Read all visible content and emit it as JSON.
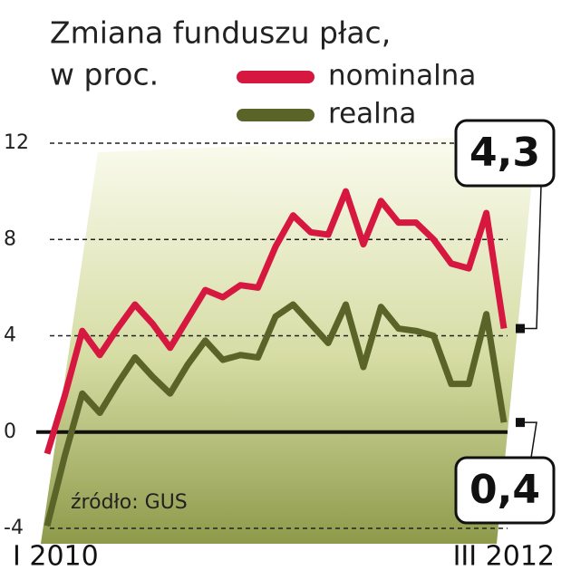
{
  "chart_data": {
    "type": "line",
    "title": [
      "Zmiana funduszu płac,",
      "w proc."
    ],
    "source": "źródło: GUS",
    "categories": [
      "I 2010",
      null,
      null,
      null,
      null,
      null,
      null,
      null,
      null,
      null,
      null,
      null,
      null,
      null,
      null,
      null,
      null,
      null,
      null,
      null,
      null,
      null,
      null,
      null,
      null,
      null,
      "III 2012"
    ],
    "series": [
      {
        "name": "nominalna",
        "color": "#d6173f",
        "values": [
          -0.9,
          1.5,
          4.2,
          3.2,
          4.3,
          5.3,
          4.5,
          3.5,
          4.7,
          5.9,
          5.6,
          6.1,
          6.0,
          7.7,
          9.0,
          8.3,
          8.2,
          10.0,
          7.8,
          9.6,
          8.7,
          8.7,
          8.0,
          7.0,
          6.8,
          9.1,
          4.3
        ],
        "value_labels": [
          null,
          null,
          null,
          null,
          null,
          null,
          null,
          null,
          null,
          null,
          null,
          null,
          null,
          null,
          null,
          null,
          null,
          null,
          null,
          null,
          null,
          null,
          null,
          null,
          null,
          null,
          "4,3"
        ]
      },
      {
        "name": "realna",
        "color": "#5a6428",
        "values": [
          -3.9,
          -1.0,
          1.6,
          0.8,
          2.0,
          3.1,
          2.3,
          1.6,
          2.8,
          3.8,
          3.0,
          3.2,
          3.1,
          4.8,
          5.3,
          4.5,
          3.7,
          5.3,
          2.7,
          5.2,
          4.3,
          4.2,
          4.0,
          2.0,
          2.0,
          4.9,
          0.4
        ],
        "value_labels": [
          null,
          null,
          null,
          null,
          null,
          null,
          null,
          null,
          null,
          null,
          null,
          null,
          null,
          null,
          null,
          null,
          null,
          null,
          null,
          null,
          null,
          null,
          null,
          null,
          null,
          null,
          "0,4"
        ]
      }
    ],
    "ylim": [
      -4,
      12
    ],
    "yticks": [
      -4,
      0,
      4,
      8,
      12
    ],
    "grid": true
  }
}
